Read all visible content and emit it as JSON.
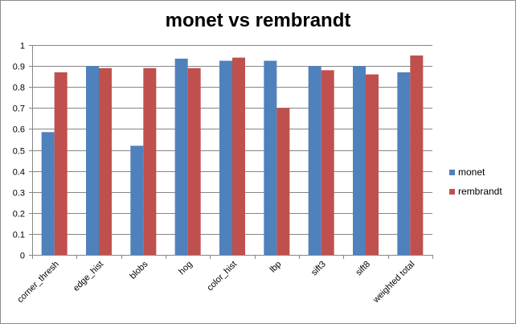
{
  "chart_data": {
    "type": "bar",
    "title": "monet vs rembrandt",
    "xlabel": "",
    "ylabel": "",
    "categories": [
      "corner_thresh",
      "edge_hist",
      "blobs",
      "hog",
      "color_hist",
      "lbp",
      "sift3",
      "sift8",
      "weighted total"
    ],
    "series": [
      {
        "name": "monet",
        "color": "#4f81bd",
        "values": [
          0.585,
          0.9,
          0.52,
          0.935,
          0.925,
          0.925,
          0.9,
          0.9,
          0.87
        ]
      },
      {
        "name": "rembrandt",
        "color": "#c0504d",
        "values": [
          0.87,
          0.89,
          0.89,
          0.89,
          0.94,
          0.7,
          0.88,
          0.86,
          0.95
        ]
      }
    ],
    "ylim": [
      0,
      1
    ],
    "yticks": [
      "0",
      "0.1",
      "0.2",
      "0.3",
      "0.4",
      "0.5",
      "0.6",
      "0.7",
      "0.8",
      "0.9",
      "1"
    ],
    "grid": true,
    "legend_position": "right"
  }
}
